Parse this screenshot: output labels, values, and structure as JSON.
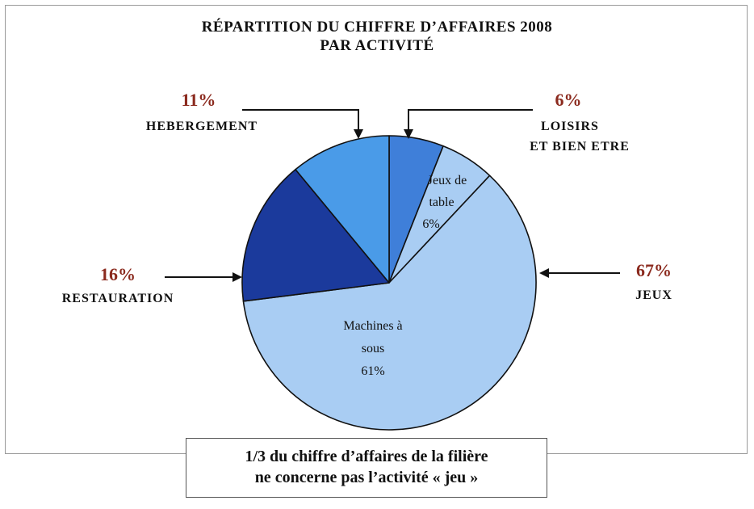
{
  "chart_data": {
    "type": "pie",
    "title_lines": [
      "RÉPARTITION DU CHIFFRE D’AFFAIRES 2008",
      "PAR ACTIVITÉ"
    ],
    "slices": [
      {
        "label_lines": [
          "LOISIRS",
          "ET BIEN ETRE"
        ],
        "value": 6,
        "value_label": "6%",
        "color": "#3f7fd9",
        "group": "outer"
      },
      {
        "label_lines": [
          "Jeux de",
          "table",
          "6%"
        ],
        "value": 6,
        "value_label": "6%",
        "color": "#a9cdf3",
        "group": "jeux"
      },
      {
        "label_lines": [
          "Machines à",
          "sous",
          "61%"
        ],
        "value": 61,
        "value_label": "61%",
        "color": "#a9cdf3",
        "group": "jeux"
      },
      {
        "label_lines": [
          "RESTAURATION"
        ],
        "value": 16,
        "value_label": "16%",
        "color": "#1b3a9c",
        "group": "outer"
      },
      {
        "label_lines": [
          "HEBERGEMENT"
        ],
        "value": 11,
        "value_label": "11%",
        "color": "#4a9be8",
        "group": "outer"
      }
    ],
    "group_labels": [
      {
        "name": "JEUX",
        "value_label": "67%"
      }
    ],
    "start_angle_deg": 0,
    "direction": "clockwise",
    "legend": "none",
    "note_lines": [
      "1/3 du chiffre d’affaires de la filière",
      "ne concerne pas l’activité « jeu »"
    ]
  },
  "colors": {
    "percent_label": "#8b2a1e",
    "slice_outline": "#111111"
  }
}
